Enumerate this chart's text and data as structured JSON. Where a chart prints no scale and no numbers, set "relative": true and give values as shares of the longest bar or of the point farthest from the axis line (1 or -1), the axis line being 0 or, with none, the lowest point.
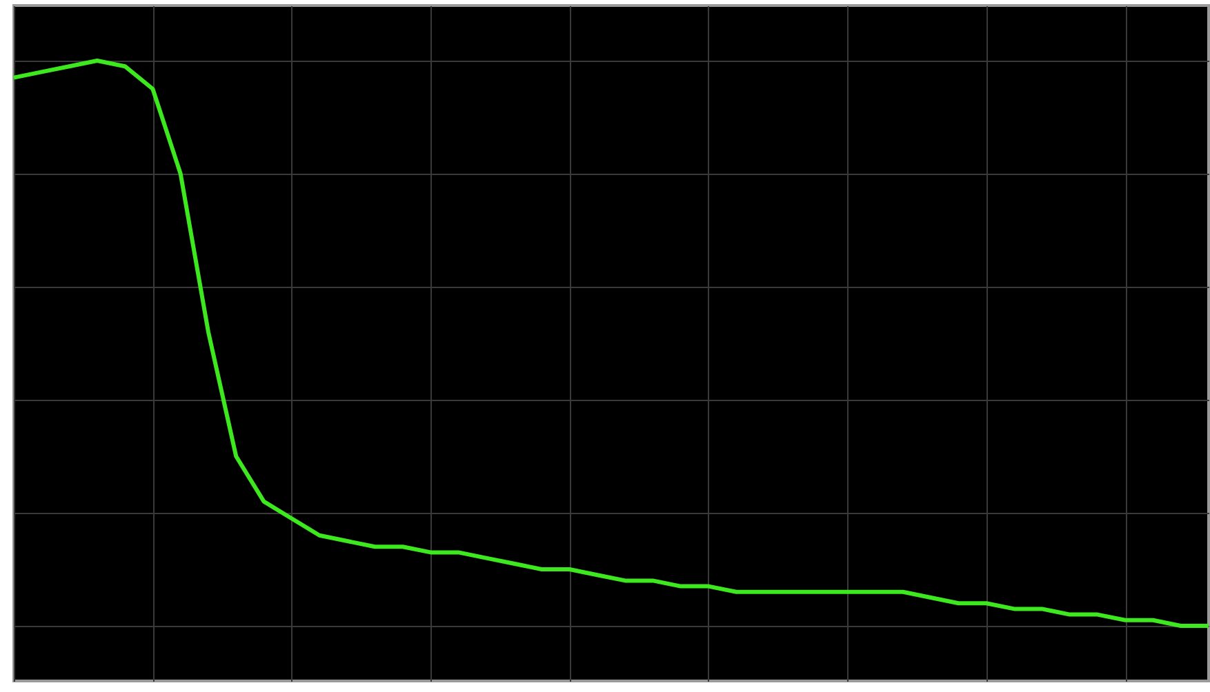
{
  "chart_data": {
    "type": "line",
    "relative": true,
    "grid": true,
    "legend": false,
    "marker": "none",
    "line_style": "solid",
    "categories": [
      null,
      null,
      null,
      null,
      null,
      null,
      null,
      null,
      null,
      null,
      null,
      null,
      null,
      null,
      null,
      null,
      null,
      null,
      null,
      null,
      null,
      null,
      null,
      null,
      null,
      null,
      null,
      null,
      null,
      null,
      null,
      null,
      null,
      null,
      null,
      null,
      null,
      null,
      null,
      null,
      null,
      null,
      null,
      null
    ],
    "series": [
      {
        "color": "#3de81f",
        "values": [
          0.97,
          0.98,
          0.99,
          1,
          0.99,
          0.95,
          0.8,
          0.52,
          0.3,
          0.22,
          0.19,
          0.16,
          0.15,
          0.14,
          0.14,
          0.13,
          0.13,
          0.12,
          0.11,
          0.1,
          0.1,
          0.09,
          0.08,
          0.08,
          0.07,
          0.07,
          0.06,
          0.06,
          0.06,
          0.06,
          0.06,
          0.06,
          0.06,
          0.05,
          0.04,
          0.04,
          0.03,
          0.03,
          0.02,
          0.02,
          0.01,
          0.01,
          0,
          0
        ]
      }
    ]
  }
}
